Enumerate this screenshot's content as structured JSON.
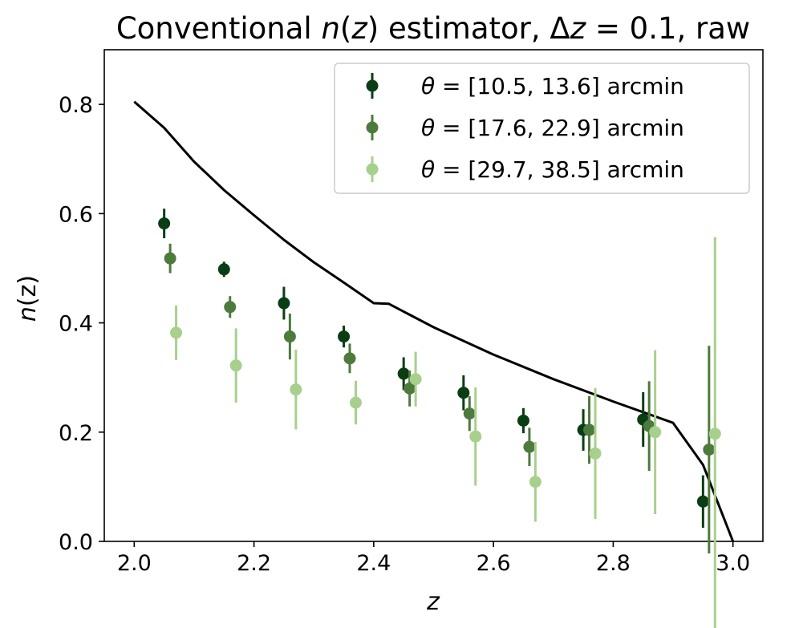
{
  "chart_data": {
    "type": "scatter",
    "title": "Conventional n(z) estimator, Δz = 0.1, raw",
    "title_parts": {
      "pre": "Conventional ",
      "func": "n",
      "paren_open": "(",
      "var": "z",
      "paren_close": ")",
      "mid": " estimator, Δ",
      "dz_var": "z",
      "eq": " = 0.1, raw"
    },
    "xlabel": "z",
    "ylabel": "n(z)",
    "ylabel_parts": {
      "func": "n",
      "rest": "(z)"
    },
    "xlim": [
      1.95,
      3.05
    ],
    "ylim": [
      0.0,
      0.9
    ],
    "xticks": [
      "2.0",
      "2.2",
      "2.4",
      "2.6",
      "2.8",
      "3.0"
    ],
    "yticks": [
      "0.0",
      "0.2",
      "0.4",
      "0.6",
      "0.8"
    ],
    "grid": false,
    "legend_position": "top-right",
    "reference_line": {
      "color": "#000000",
      "x": [
        2.0,
        2.05,
        2.1,
        2.15,
        2.2,
        2.25,
        2.3,
        2.35,
        2.4,
        2.425,
        2.5,
        2.6,
        2.7,
        2.8,
        2.9,
        2.95,
        3.0
      ],
      "y": [
        0.805,
        0.757,
        0.695,
        0.643,
        0.597,
        0.552,
        0.511,
        0.474,
        0.436,
        0.435,
        0.392,
        0.342,
        0.297,
        0.256,
        0.217,
        0.14,
        0.0
      ]
    },
    "series": [
      {
        "name": "θ = [10.5, 13.6] arcmin",
        "legend_theta": "θ",
        "legend_rest": " = [10.5, 13.6] arcmin",
        "color": "#0b3d14",
        "x": [
          2.05,
          2.15,
          2.25,
          2.35,
          2.45,
          2.55,
          2.65,
          2.75,
          2.85,
          2.95
        ],
        "y": [
          0.582,
          0.498,
          0.436,
          0.375,
          0.307,
          0.272,
          0.221,
          0.204,
          0.223,
          0.073
        ],
        "err": [
          0.027,
          0.014,
          0.03,
          0.02,
          0.03,
          0.032,
          0.023,
          0.038,
          0.05,
          0.048
        ]
      },
      {
        "name": "θ = [17.6, 22.9] arcmin",
        "legend_theta": "θ",
        "legend_rest": " = [17.6, 22.9] arcmin",
        "color": "#4d7a3d",
        "x": [
          2.06,
          2.16,
          2.26,
          2.36,
          2.46,
          2.56,
          2.66,
          2.76,
          2.86,
          2.96
        ],
        "y": [
          0.518,
          0.429,
          0.375,
          0.335,
          0.28,
          0.234,
          0.173,
          0.204,
          0.211,
          0.168
        ],
        "err": [
          0.027,
          0.02,
          0.042,
          0.027,
          0.033,
          0.032,
          0.035,
          0.062,
          0.082,
          0.19
        ]
      },
      {
        "name": "θ = [29.7, 38.5] arcmin",
        "legend_theta": "θ",
        "legend_rest": " = [29.7, 38.5] arcmin",
        "color": "#a8d08d",
        "x": [
          2.07,
          2.17,
          2.27,
          2.37,
          2.47,
          2.57,
          2.67,
          2.77,
          2.87,
          2.97
        ],
        "y": [
          0.382,
          0.322,
          0.278,
          0.254,
          0.297,
          0.192,
          0.109,
          0.161,
          0.2,
          0.197
        ],
        "err": [
          0.05,
          0.068,
          0.073,
          0.04,
          0.05,
          0.09,
          0.073,
          0.12,
          0.15,
          0.36
        ]
      }
    ]
  }
}
